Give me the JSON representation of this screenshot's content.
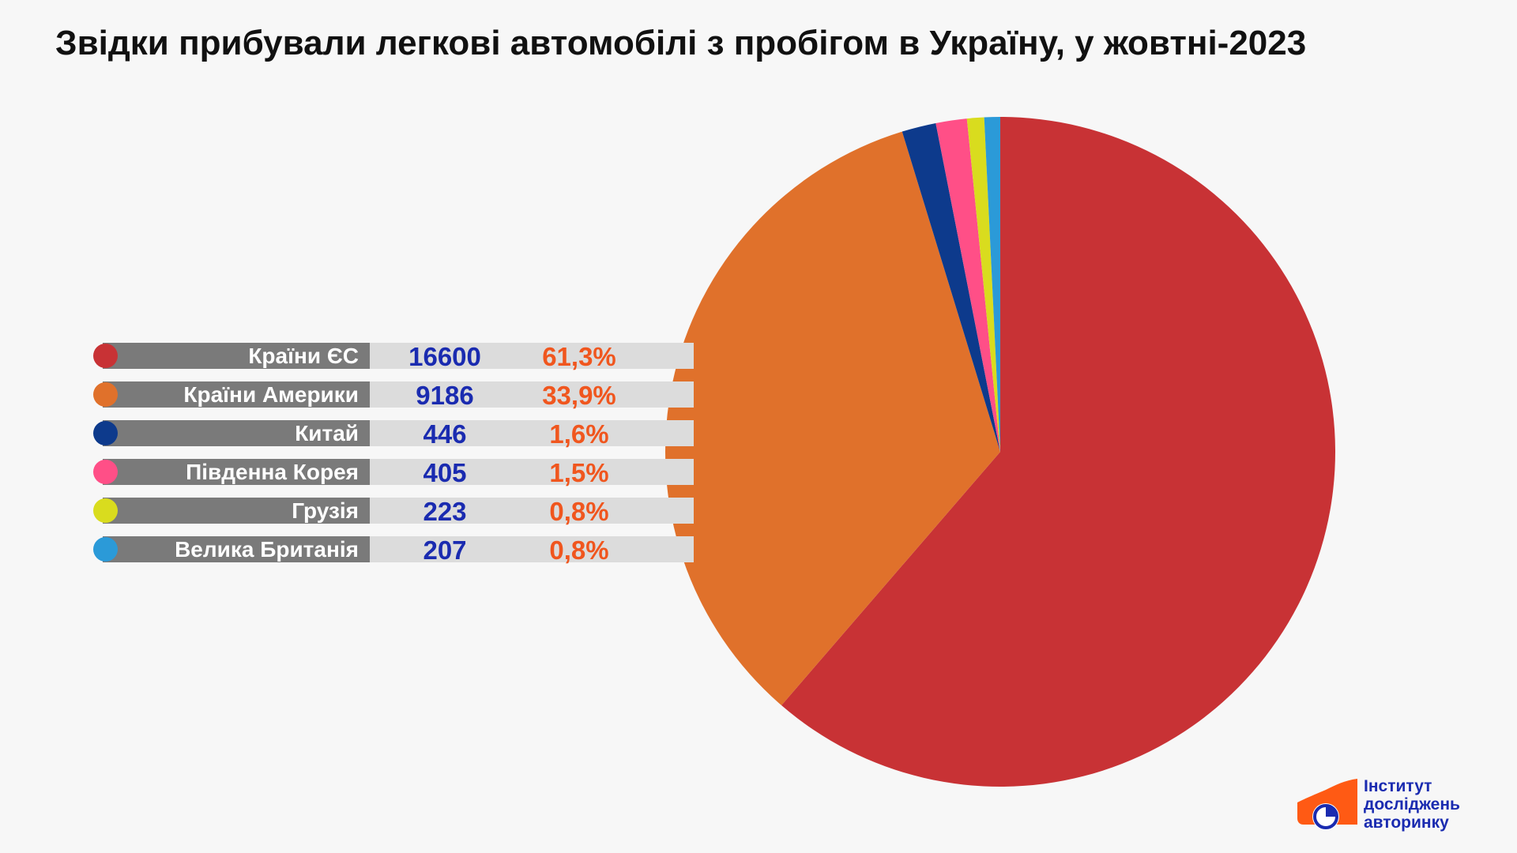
{
  "chart_data": {
    "type": "pie",
    "title": "Звідки прибували легкові автомобілі з пробігом в Україну, у жовтні-2023",
    "categories": [
      "Країни ЄС",
      "Країни Америки",
      "Китай",
      "Південна Корея",
      "Грузія",
      "Велика Британія"
    ],
    "values": [
      16600,
      9186,
      446,
      405,
      223,
      207
    ],
    "percent_labels": [
      "61,3%",
      "33,9%",
      "1,6%",
      "1,5%",
      "0,8%",
      "0,8%"
    ],
    "colors": [
      "#c83235",
      "#e0712b",
      "#0d3a8c",
      "#ff4f87",
      "#d9dc1e",
      "#2b9ad8"
    ],
    "legend_position": "left",
    "start_angle_deg": 0,
    "direction": "clockwise"
  },
  "logo": {
    "lines": [
      "Інститут",
      "досліджень",
      "авторинку"
    ],
    "colors": {
      "mark": "#ff5a14",
      "text": "#1a2bb0",
      "dial": "#1a2bb0"
    }
  }
}
